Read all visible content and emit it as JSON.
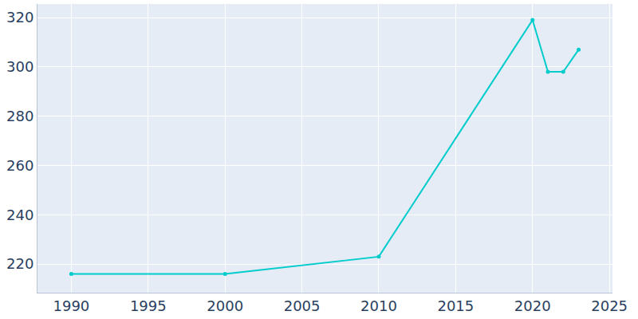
{
  "chart_data": {
    "type": "line",
    "x": [
      1990,
      2000,
      2010,
      2020,
      2021,
      2022,
      2023
    ],
    "values": [
      216,
      216,
      223,
      319,
      298,
      298,
      307
    ],
    "color": "#00cccc",
    "marker": "circle",
    "line_style": "solid",
    "xlim": [
      1987.8,
      2025.2
    ],
    "xticks": [
      1990,
      1995,
      2000,
      2005,
      2010,
      2015,
      2020,
      2025
    ],
    "ylim": [
      208.4,
      325.5
    ],
    "yticks": [
      220,
      240,
      260,
      280,
      300,
      320
    ],
    "grid": true
  }
}
